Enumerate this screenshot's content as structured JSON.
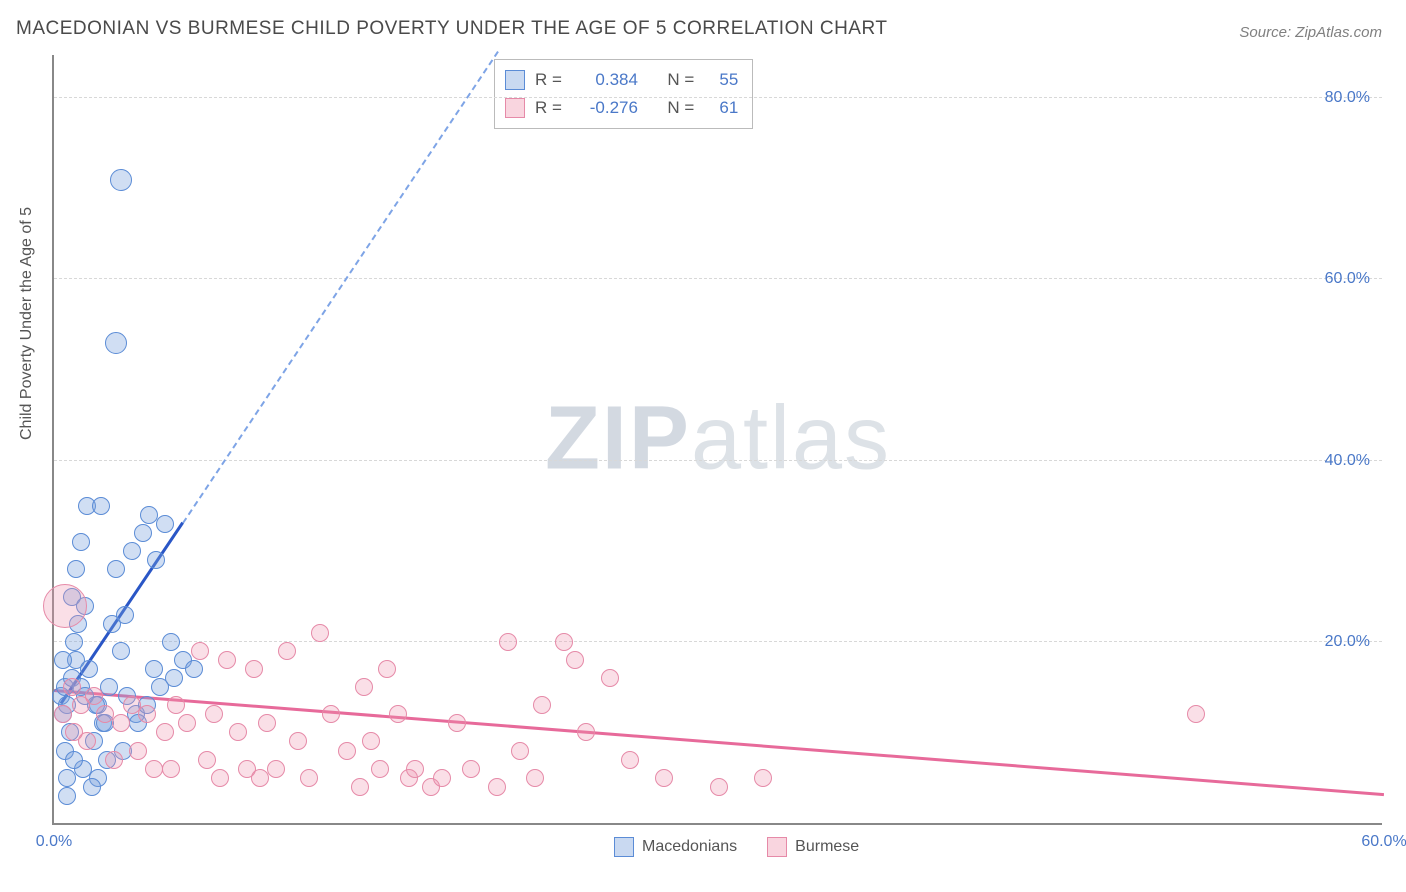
{
  "title": "MACEDONIAN VS BURMESE CHILD POVERTY UNDER THE AGE OF 5 CORRELATION CHART",
  "source_prefix": "Source: ",
  "source_name": "ZipAtlas.com",
  "y_axis_label": "Child Poverty Under the Age of 5",
  "watermark_bold": "ZIP",
  "watermark_rest": "atlas",
  "chart": {
    "type": "scatter",
    "background_color": "#ffffff",
    "grid_color": "#d8d8d8",
    "axis_color": "#888888",
    "tick_label_color": "#4a78c8",
    "tick_fontsize": 16,
    "title_fontsize": 19,
    "title_color": "#4a4a4a",
    "label_fontsize": 16,
    "xlim": [
      0,
      60
    ],
    "ylim": [
      0,
      85
    ],
    "x_ticks": [
      0,
      60
    ],
    "x_tick_labels": [
      "0.0%",
      "60.0%"
    ],
    "y_ticks": [
      20,
      40,
      60,
      80
    ],
    "y_tick_labels": [
      "20.0%",
      "40.0%",
      "60.0%",
      "80.0%"
    ],
    "marker_default_radius": 9,
    "marker_border_width": 1.5
  },
  "series": [
    {
      "name": "Macedonians",
      "color_fill": "rgba(120,160,220,0.35)",
      "color_stroke": "#5b8cd6",
      "r_label": "R =",
      "r_value": "0.384",
      "n_label": "N =",
      "n_value": "55",
      "trend": {
        "solid": {
          "x1": 0.3,
          "y1": 13,
          "x2": 5.8,
          "y2": 33,
          "color": "#2a56c6",
          "width": 3,
          "dash": false
        },
        "dashed": {
          "x1": 5.8,
          "y1": 33,
          "x2": 20,
          "y2": 85,
          "color": "#7ea4e6",
          "width": 2,
          "dash": true
        }
      },
      "points": [
        {
          "x": 0.3,
          "y": 14
        },
        {
          "x": 0.5,
          "y": 15
        },
        {
          "x": 0.6,
          "y": 13
        },
        {
          "x": 0.8,
          "y": 16
        },
        {
          "x": 0.4,
          "y": 12
        },
        {
          "x": 1.0,
          "y": 18
        },
        {
          "x": 1.2,
          "y": 15
        },
        {
          "x": 0.7,
          "y": 10
        },
        {
          "x": 1.4,
          "y": 14
        },
        {
          "x": 1.6,
          "y": 17
        },
        {
          "x": 0.5,
          "y": 8
        },
        {
          "x": 2.0,
          "y": 13
        },
        {
          "x": 2.2,
          "y": 11
        },
        {
          "x": 0.9,
          "y": 20
        },
        {
          "x": 1.1,
          "y": 22
        },
        {
          "x": 2.5,
          "y": 15
        },
        {
          "x": 3.0,
          "y": 19
        },
        {
          "x": 1.3,
          "y": 6
        },
        {
          "x": 1.8,
          "y": 9
        },
        {
          "x": 3.3,
          "y": 14
        },
        {
          "x": 0.4,
          "y": 18
        },
        {
          "x": 2.8,
          "y": 28
        },
        {
          "x": 3.5,
          "y": 30
        },
        {
          "x": 4.0,
          "y": 32
        },
        {
          "x": 4.3,
          "y": 34
        },
        {
          "x": 4.6,
          "y": 29
        },
        {
          "x": 5.0,
          "y": 33
        },
        {
          "x": 1.5,
          "y": 35
        },
        {
          "x": 1.2,
          "y": 31
        },
        {
          "x": 0.6,
          "y": 5
        },
        {
          "x": 2.0,
          "y": 5
        },
        {
          "x": 2.4,
          "y": 7
        },
        {
          "x": 3.1,
          "y": 8
        },
        {
          "x": 3.7,
          "y": 12
        },
        {
          "x": 4.5,
          "y": 17
        },
        {
          "x": 5.3,
          "y": 20
        },
        {
          "x": 5.8,
          "y": 18
        },
        {
          "x": 6.3,
          "y": 17
        },
        {
          "x": 0.8,
          "y": 25
        },
        {
          "x": 1.0,
          "y": 28
        },
        {
          "x": 1.4,
          "y": 24
        },
        {
          "x": 2.6,
          "y": 22
        },
        {
          "x": 3.2,
          "y": 23
        },
        {
          "x": 2.1,
          "y": 35
        },
        {
          "x": 2.3,
          "y": 11
        },
        {
          "x": 3.8,
          "y": 11
        },
        {
          "x": 4.2,
          "y": 13
        },
        {
          "x": 4.8,
          "y": 15
        },
        {
          "x": 5.4,
          "y": 16
        },
        {
          "x": 3.0,
          "y": 71,
          "r": 11
        },
        {
          "x": 2.8,
          "y": 53,
          "r": 11
        },
        {
          "x": 0.6,
          "y": 3
        },
        {
          "x": 1.7,
          "y": 4
        },
        {
          "x": 0.9,
          "y": 7
        },
        {
          "x": 1.9,
          "y": 13
        }
      ]
    },
    {
      "name": "Burmese",
      "color_fill": "rgba(240,150,175,0.30)",
      "color_stroke": "#e68aa8",
      "r_label": "R =",
      "r_value": "-0.276",
      "n_label": "N =",
      "n_value": "61",
      "trend": {
        "solid": {
          "x1": 0,
          "y1": 14.5,
          "x2": 60,
          "y2": 3,
          "color": "#e76a9a",
          "width": 3,
          "dash": false
        }
      },
      "points": [
        {
          "x": 0.5,
          "y": 24,
          "r": 22
        },
        {
          "x": 0.8,
          "y": 15
        },
        {
          "x": 0.4,
          "y": 12
        },
        {
          "x": 1.2,
          "y": 13
        },
        {
          "x": 1.8,
          "y": 14
        },
        {
          "x": 2.3,
          "y": 12
        },
        {
          "x": 3.0,
          "y": 11
        },
        {
          "x": 3.5,
          "y": 13
        },
        {
          "x": 4.2,
          "y": 12
        },
        {
          "x": 5.0,
          "y": 10
        },
        {
          "x": 5.5,
          "y": 13
        },
        {
          "x": 6.0,
          "y": 11
        },
        {
          "x": 6.6,
          "y": 19
        },
        {
          "x": 7.2,
          "y": 12
        },
        {
          "x": 7.8,
          "y": 18
        },
        {
          "x": 8.3,
          "y": 10
        },
        {
          "x": 9.0,
          "y": 17
        },
        {
          "x": 9.6,
          "y": 11
        },
        {
          "x": 10.5,
          "y": 19
        },
        {
          "x": 11.0,
          "y": 9
        },
        {
          "x": 12.0,
          "y": 21
        },
        {
          "x": 12.5,
          "y": 12
        },
        {
          "x": 13.2,
          "y": 8
        },
        {
          "x": 14.0,
          "y": 15
        },
        {
          "x": 14.7,
          "y": 6
        },
        {
          "x": 15.5,
          "y": 12
        },
        {
          "x": 16.0,
          "y": 5
        },
        {
          "x": 16.3,
          "y": 6
        },
        {
          "x": 17.0,
          "y": 4
        },
        {
          "x": 17.5,
          "y": 5
        },
        {
          "x": 18.2,
          "y": 11
        },
        {
          "x": 20.5,
          "y": 20
        },
        {
          "x": 21.0,
          "y": 8
        },
        {
          "x": 22.0,
          "y": 13
        },
        {
          "x": 23.5,
          "y": 18
        },
        {
          "x": 24.0,
          "y": 10
        },
        {
          "x": 25.1,
          "y": 16
        },
        {
          "x": 26.0,
          "y": 7
        },
        {
          "x": 20.0,
          "y": 4
        },
        {
          "x": 27.5,
          "y": 5
        },
        {
          "x": 30.0,
          "y": 4
        },
        {
          "x": 32.0,
          "y": 5
        },
        {
          "x": 10.0,
          "y": 6
        },
        {
          "x": 11.5,
          "y": 5
        },
        {
          "x": 8.7,
          "y": 6
        },
        {
          "x": 9.3,
          "y": 5
        },
        {
          "x": 13.8,
          "y": 4
        },
        {
          "x": 6.9,
          "y": 7
        },
        {
          "x": 5.3,
          "y": 6
        },
        {
          "x": 18.8,
          "y": 6
        },
        {
          "x": 21.7,
          "y": 5
        },
        {
          "x": 23.0,
          "y": 20
        },
        {
          "x": 7.5,
          "y": 5
        },
        {
          "x": 51.5,
          "y": 12
        },
        {
          "x": 14.3,
          "y": 9
        },
        {
          "x": 15.0,
          "y": 17
        },
        {
          "x": 3.8,
          "y": 8
        },
        {
          "x": 4.5,
          "y": 6
        },
        {
          "x": 2.7,
          "y": 7
        },
        {
          "x": 1.5,
          "y": 9
        },
        {
          "x": 0.9,
          "y": 10
        }
      ]
    }
  ],
  "legend_bottom": [
    {
      "label": "Macedonians",
      "swatch": "blue"
    },
    {
      "label": "Burmese",
      "swatch": "pink"
    }
  ]
}
